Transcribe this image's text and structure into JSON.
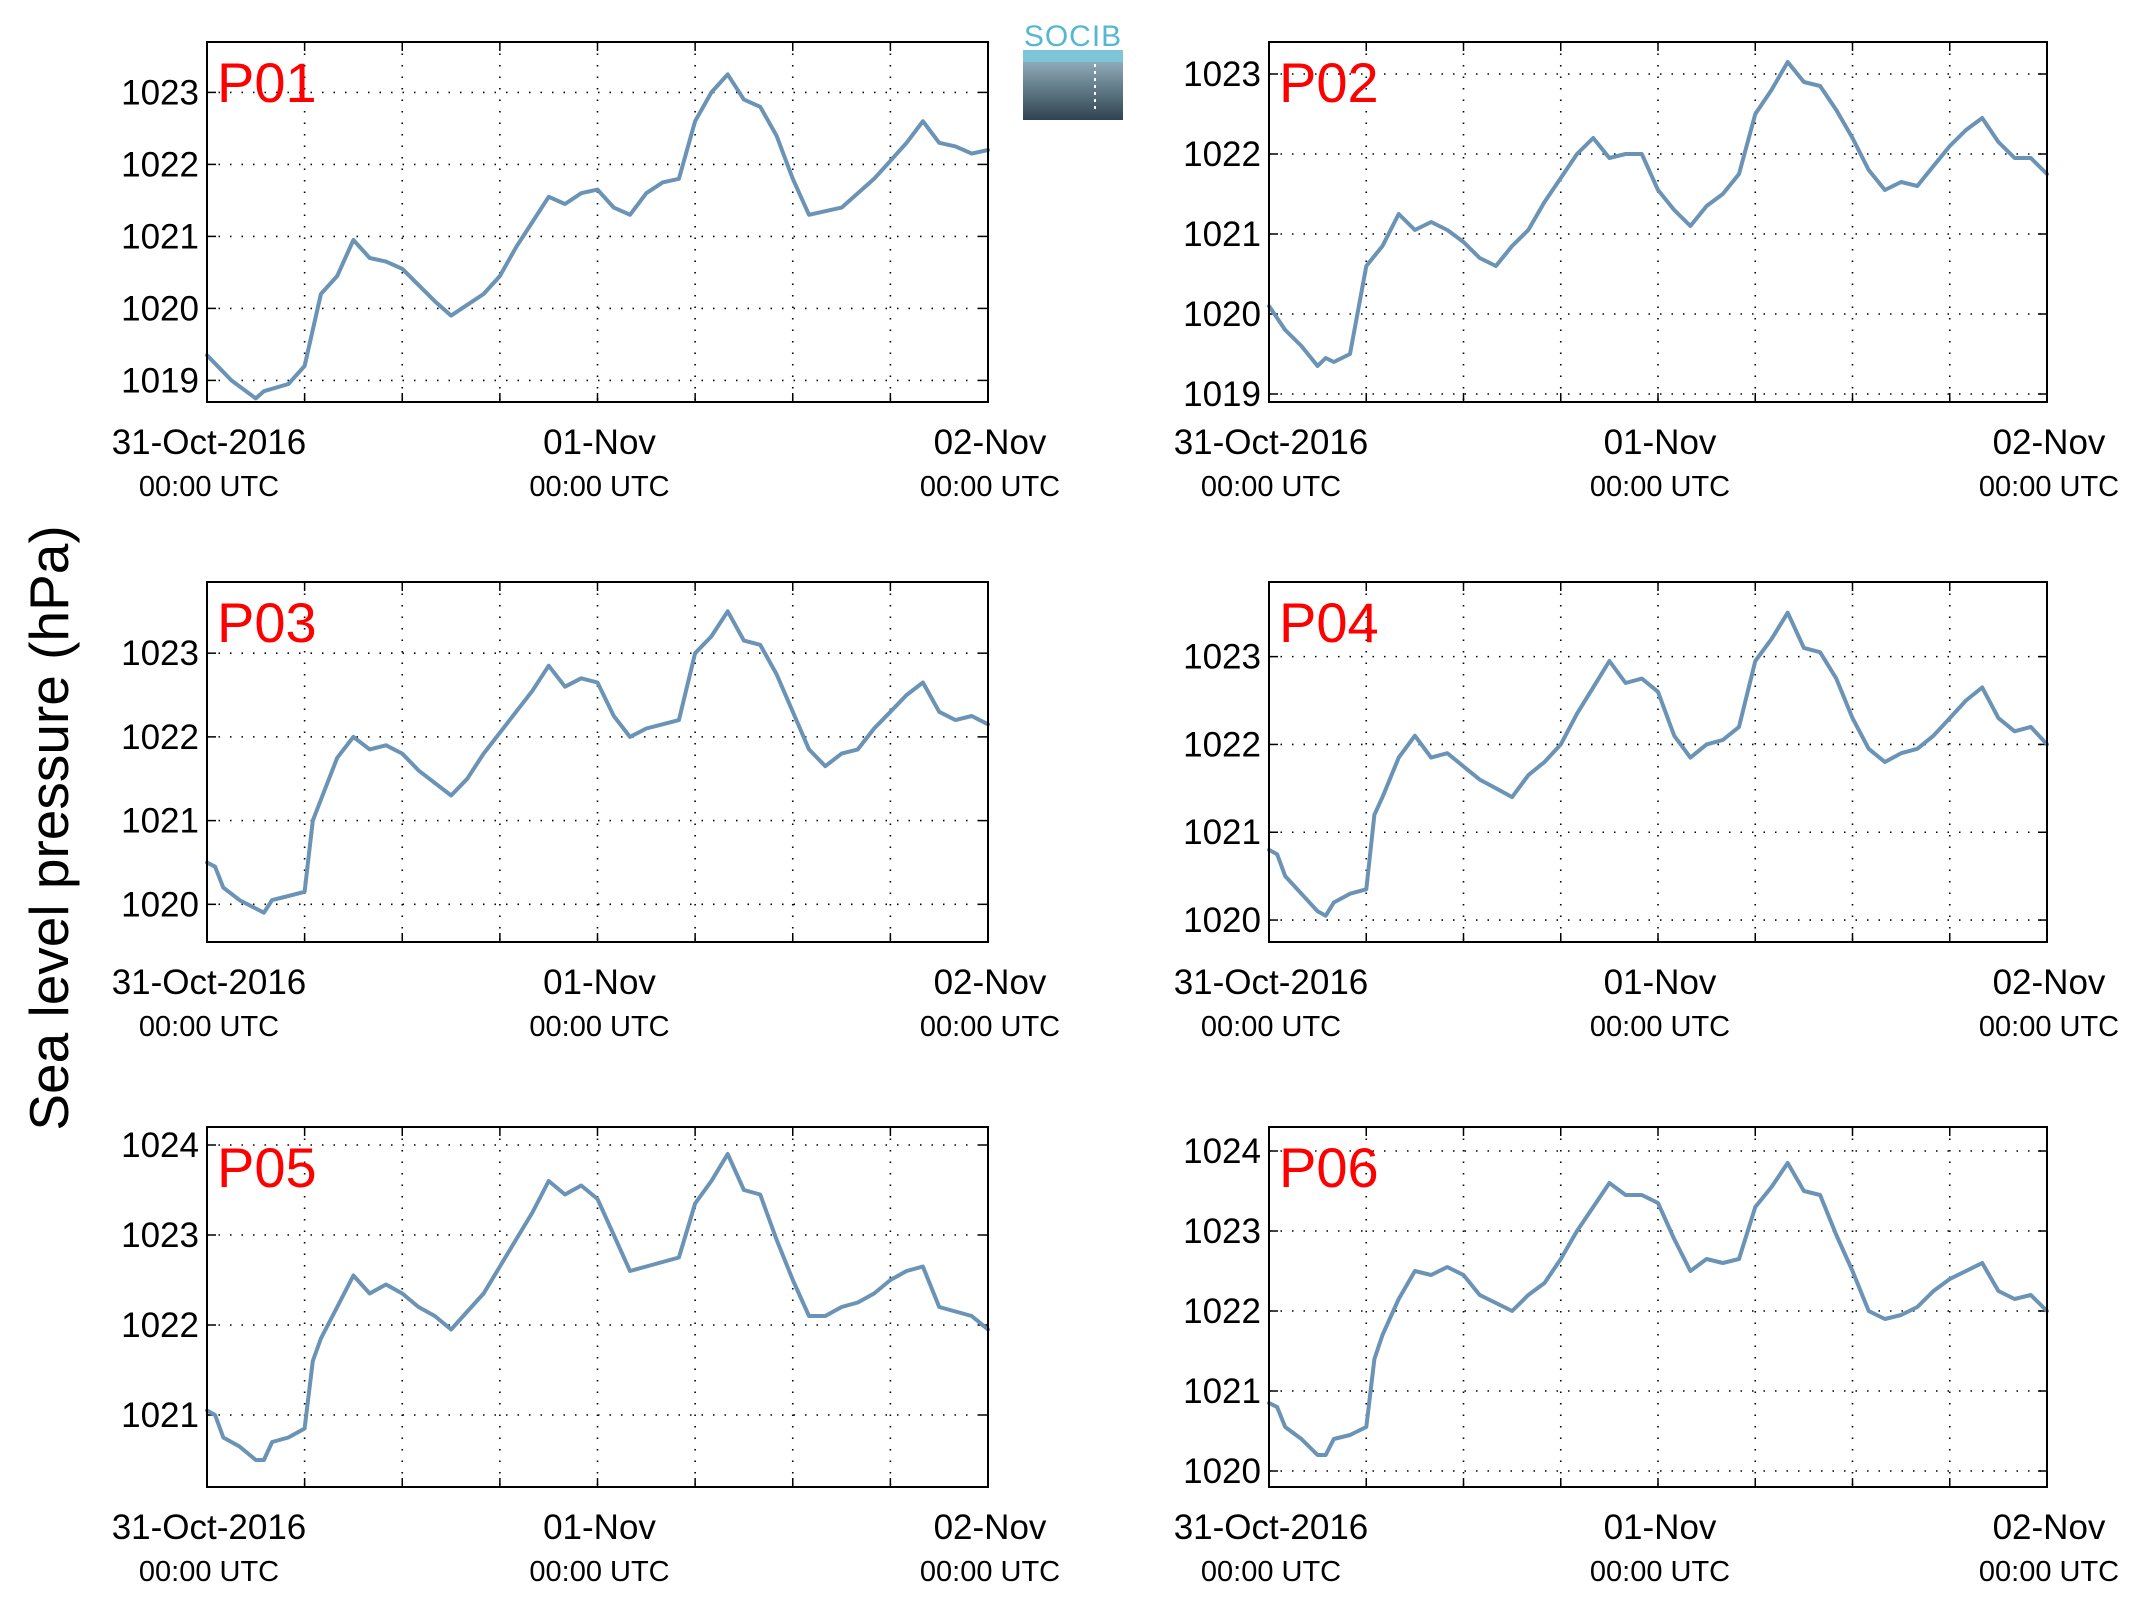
{
  "figure": {
    "ylabel": "Sea level pressure (hPa)",
    "logo_text": "SOCIB",
    "colors": {
      "line": "#6a93b5",
      "panel_label": "#ff0000",
      "axis": "#000000"
    }
  },
  "chart_data": [
    {
      "type": "line",
      "title": "P01",
      "ylim": [
        1018.7,
        1023.7
      ],
      "yticks": [
        1019,
        1020,
        1021,
        1022,
        1023
      ],
      "xlim": [
        0,
        48
      ],
      "grid": true,
      "xticks": [
        {
          "t": 0,
          "date": "31-Oct-2016",
          "time": "00:00 UTC"
        },
        {
          "t": 24,
          "date": "01-Nov",
          "time": "00:00 UTC"
        },
        {
          "t": 48,
          "date": "02-Nov",
          "time": "00:00 UTC"
        }
      ],
      "series": [
        {
          "x": [
            0,
            1.5,
            3,
            3.5,
            5,
            6,
            7,
            8,
            9,
            10,
            11,
            12,
            14,
            15,
            16,
            17,
            18,
            19,
            20,
            21,
            22,
            23,
            24,
            25,
            26,
            27,
            28,
            29,
            30,
            31,
            32,
            33,
            34,
            35,
            36,
            37,
            38,
            39,
            40,
            41,
            42,
            43,
            44,
            45,
            46,
            47,
            48
          ],
          "y": [
            1019.35,
            1019.0,
            1018.75,
            1018.85,
            1018.95,
            1019.2,
            1020.2,
            1020.45,
            1020.95,
            1020.7,
            1020.65,
            1020.55,
            1020.1,
            1019.9,
            1020.05,
            1020.2,
            1020.45,
            1020.85,
            1021.2,
            1021.55,
            1021.45,
            1021.6,
            1021.65,
            1021.4,
            1021.3,
            1021.6,
            1021.75,
            1021.8,
            1022.6,
            1023.0,
            1023.25,
            1022.9,
            1022.8,
            1022.4,
            1021.8,
            1021.3,
            1021.35,
            1021.4,
            1021.6,
            1021.8,
            1022.05,
            1022.3,
            1022.6,
            1022.3,
            1022.25,
            1022.15,
            1022.2
          ]
        }
      ]
    },
    {
      "type": "line",
      "title": "P02",
      "ylim": [
        1018.9,
        1023.4
      ],
      "yticks": [
        1019,
        1020,
        1021,
        1022,
        1023
      ],
      "xlim": [
        0,
        48
      ],
      "grid": true,
      "xticks": [
        {
          "t": 0,
          "date": "31-Oct-2016",
          "time": "00:00 UTC"
        },
        {
          "t": 24,
          "date": "01-Nov",
          "time": "00:00 UTC"
        },
        {
          "t": 48,
          "date": "02-Nov",
          "time": "00:00 UTC"
        }
      ],
      "series": [
        {
          "x": [
            0,
            1,
            2,
            3,
            3.5,
            4,
            5,
            6,
            7,
            8,
            9,
            10,
            11,
            12,
            13,
            14,
            15,
            16,
            17,
            18,
            19,
            20,
            21,
            22,
            23,
            24,
            25,
            26,
            27,
            28,
            29,
            30,
            31,
            32,
            33,
            34,
            35,
            36,
            37,
            38,
            39,
            40,
            41,
            42,
            43,
            44,
            45,
            46,
            47,
            48
          ],
          "y": [
            1020.1,
            1019.8,
            1019.6,
            1019.35,
            1019.45,
            1019.4,
            1019.5,
            1020.6,
            1020.85,
            1021.25,
            1021.05,
            1021.15,
            1021.05,
            1020.9,
            1020.7,
            1020.6,
            1020.85,
            1021.05,
            1021.4,
            1021.7,
            1022.0,
            1022.2,
            1021.95,
            1022.0,
            1022.0,
            1021.55,
            1021.3,
            1021.1,
            1021.35,
            1021.5,
            1021.75,
            1022.5,
            1022.8,
            1023.15,
            1022.9,
            1022.85,
            1022.55,
            1022.2,
            1021.8,
            1021.55,
            1021.65,
            1021.6,
            1021.85,
            1022.1,
            1022.3,
            1022.45,
            1022.15,
            1021.95,
            1021.95,
            1021.75
          ]
        }
      ]
    },
    {
      "type": "line",
      "title": "P03",
      "ylim": [
        1019.55,
        1023.85
      ],
      "yticks": [
        1020,
        1021,
        1022,
        1023
      ],
      "xlim": [
        0,
        48
      ],
      "grid": true,
      "xticks": [
        {
          "t": 0,
          "date": "31-Oct-2016",
          "time": "00:00 UTC"
        },
        {
          "t": 24,
          "date": "01-Nov",
          "time": "00:00 UTC"
        },
        {
          "t": 48,
          "date": "02-Nov",
          "time": "00:00 UTC"
        }
      ],
      "series": [
        {
          "x": [
            0,
            0.5,
            1,
            2,
            3,
            3.5,
            4,
            5,
            6,
            6.5,
            7,
            8,
            9,
            10,
            11,
            12,
            13,
            14,
            15,
            16,
            17,
            18,
            19,
            20,
            21,
            22,
            23,
            24,
            25,
            26,
            27,
            28,
            29,
            30,
            31,
            32,
            33,
            34,
            35,
            36,
            37,
            38,
            39,
            40,
            41,
            42,
            43,
            44,
            45,
            46,
            47,
            48
          ],
          "y": [
            1020.5,
            1020.45,
            1020.2,
            1020.05,
            1019.95,
            1019.9,
            1020.05,
            1020.1,
            1020.15,
            1021.0,
            1021.25,
            1021.75,
            1022.0,
            1021.85,
            1021.9,
            1021.8,
            1021.6,
            1021.45,
            1021.3,
            1021.5,
            1021.8,
            1022.05,
            1022.3,
            1022.55,
            1022.85,
            1022.6,
            1022.7,
            1022.65,
            1022.25,
            1022.0,
            1022.1,
            1022.15,
            1022.2,
            1023.0,
            1023.2,
            1023.5,
            1023.15,
            1023.1,
            1022.75,
            1022.3,
            1021.85,
            1021.65,
            1021.8,
            1021.85,
            1022.1,
            1022.3,
            1022.5,
            1022.65,
            1022.3,
            1022.2,
            1022.25,
            1022.15
          ]
        }
      ]
    },
    {
      "type": "line",
      "title": "P04",
      "ylim": [
        1019.75,
        1023.85
      ],
      "yticks": [
        1020,
        1021,
        1022,
        1023
      ],
      "xlim": [
        0,
        48
      ],
      "grid": true,
      "xticks": [
        {
          "t": 0,
          "date": "31-Oct-2016",
          "time": "00:00 UTC"
        },
        {
          "t": 24,
          "date": "01-Nov",
          "time": "00:00 UTC"
        },
        {
          "t": 48,
          "date": "02-Nov",
          "time": "00:00 UTC"
        }
      ],
      "series": [
        {
          "x": [
            0,
            0.5,
            1,
            2,
            3,
            3.5,
            4,
            5,
            6,
            6.5,
            7,
            8,
            9,
            10,
            11,
            12,
            13,
            14,
            15,
            16,
            17,
            18,
            19,
            20,
            21,
            22,
            23,
            24,
            25,
            26,
            27,
            28,
            29,
            30,
            31,
            32,
            33,
            34,
            35,
            36,
            37,
            38,
            39,
            40,
            41,
            42,
            43,
            44,
            45,
            46,
            47,
            48
          ],
          "y": [
            1020.8,
            1020.75,
            1020.5,
            1020.3,
            1020.1,
            1020.05,
            1020.2,
            1020.3,
            1020.35,
            1021.2,
            1021.4,
            1021.85,
            1022.1,
            1021.85,
            1021.9,
            1021.75,
            1021.6,
            1021.5,
            1021.4,
            1021.65,
            1021.8,
            1022.0,
            1022.35,
            1022.65,
            1022.95,
            1022.7,
            1022.75,
            1022.6,
            1022.1,
            1021.85,
            1022.0,
            1022.05,
            1022.2,
            1022.95,
            1023.2,
            1023.5,
            1023.1,
            1023.05,
            1022.75,
            1022.3,
            1021.95,
            1021.8,
            1021.9,
            1021.95,
            1022.1,
            1022.3,
            1022.5,
            1022.65,
            1022.3,
            1022.15,
            1022.2,
            1022.0
          ]
        }
      ]
    },
    {
      "type": "line",
      "title": "P05",
      "ylim": [
        1020.2,
        1024.2
      ],
      "yticks": [
        1021,
        1022,
        1023,
        1024
      ],
      "xlim": [
        0,
        48
      ],
      "grid": true,
      "xticks": [
        {
          "t": 0,
          "date": "31-Oct-2016",
          "time": "00:00 UTC"
        },
        {
          "t": 24,
          "date": "01-Nov",
          "time": "00:00 UTC"
        },
        {
          "t": 48,
          "date": "02-Nov",
          "time": "00:00 UTC"
        }
      ],
      "series": [
        {
          "x": [
            0,
            0.5,
            1,
            2,
            3,
            3.5,
            4,
            5,
            6,
            6.5,
            7,
            8,
            9,
            10,
            11,
            12,
            13,
            14,
            15,
            16,
            17,
            18,
            19,
            20,
            21,
            22,
            23,
            24,
            25,
            26,
            27,
            28,
            29,
            30,
            31,
            32,
            33,
            34,
            35,
            36,
            37,
            38,
            39,
            40,
            41,
            42,
            43,
            44,
            45,
            46,
            47,
            48
          ],
          "y": [
            1021.05,
            1021.0,
            1020.75,
            1020.65,
            1020.5,
            1020.5,
            1020.7,
            1020.75,
            1020.85,
            1021.6,
            1021.85,
            1022.2,
            1022.55,
            1022.35,
            1022.45,
            1022.35,
            1022.2,
            1022.1,
            1021.95,
            1022.15,
            1022.35,
            1022.65,
            1022.95,
            1023.25,
            1023.6,
            1023.45,
            1023.55,
            1023.4,
            1023.0,
            1022.6,
            1022.65,
            1022.7,
            1022.75,
            1023.35,
            1023.6,
            1023.9,
            1023.5,
            1023.45,
            1022.95,
            1022.5,
            1022.1,
            1022.1,
            1022.2,
            1022.25,
            1022.35,
            1022.5,
            1022.6,
            1022.65,
            1022.2,
            1022.15,
            1022.1,
            1021.95
          ]
        }
      ]
    },
    {
      "type": "line",
      "title": "P06",
      "ylim": [
        1019.8,
        1024.3
      ],
      "yticks": [
        1020,
        1021,
        1022,
        1023,
        1024
      ],
      "xlim": [
        0,
        48
      ],
      "grid": true,
      "xticks": [
        {
          "t": 0,
          "date": "31-Oct-2016",
          "time": "00:00 UTC"
        },
        {
          "t": 24,
          "date": "01-Nov",
          "time": "00:00 UTC"
        },
        {
          "t": 48,
          "date": "02-Nov",
          "time": "00:00 UTC"
        }
      ],
      "series": [
        {
          "x": [
            0,
            0.5,
            1,
            2,
            3,
            3.5,
            4,
            5,
            6,
            6.5,
            7,
            8,
            9,
            10,
            11,
            12,
            13,
            14,
            15,
            16,
            17,
            18,
            19,
            20,
            21,
            22,
            23,
            24,
            25,
            26,
            27,
            28,
            29,
            30,
            31,
            32,
            33,
            34,
            35,
            36,
            37,
            38,
            39,
            40,
            41,
            42,
            43,
            44,
            45,
            46,
            47,
            48
          ],
          "y": [
            1020.85,
            1020.8,
            1020.55,
            1020.4,
            1020.2,
            1020.2,
            1020.4,
            1020.45,
            1020.55,
            1021.4,
            1021.7,
            1022.15,
            1022.5,
            1022.45,
            1022.55,
            1022.45,
            1022.2,
            1022.1,
            1022.0,
            1022.2,
            1022.35,
            1022.65,
            1023.0,
            1023.3,
            1023.6,
            1023.45,
            1023.45,
            1023.35,
            1022.9,
            1022.5,
            1022.65,
            1022.6,
            1022.65,
            1023.3,
            1023.55,
            1023.85,
            1023.5,
            1023.45,
            1022.95,
            1022.5,
            1022.0,
            1021.9,
            1021.95,
            1022.05,
            1022.25,
            1022.4,
            1022.5,
            1022.6,
            1022.25,
            1022.15,
            1022.2,
            1022.0
          ]
        }
      ]
    }
  ]
}
